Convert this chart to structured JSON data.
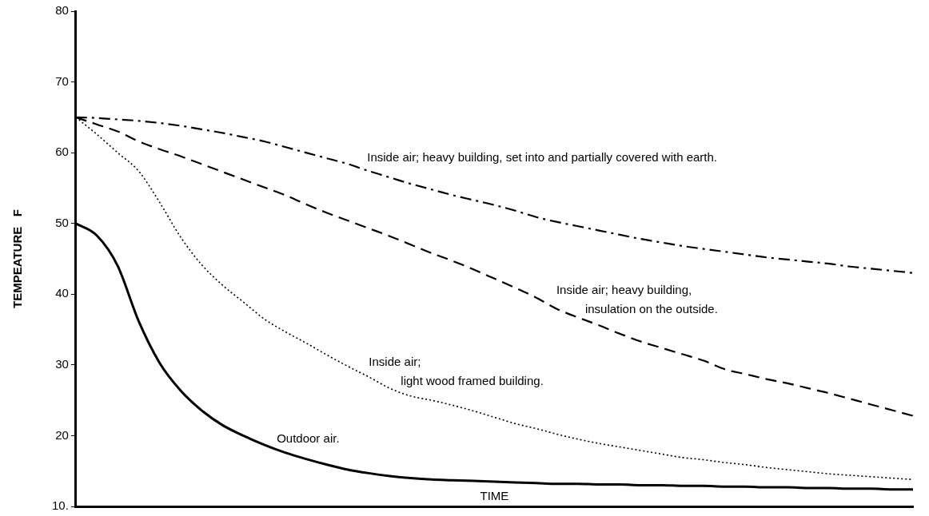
{
  "chart_data": {
    "type": "line",
    "xlabel": "TIME",
    "ylabel": "TEMPEATURE   F",
    "categories": [
      null,
      null,
      null,
      null,
      null,
      null,
      null,
      null,
      null,
      null,
      null,
      null,
      null,
      null,
      null,
      null,
      null,
      null,
      null,
      null,
      null,
      null,
      null,
      null,
      null,
      null,
      null,
      null,
      null,
      null,
      null,
      null,
      null,
      null,
      null,
      null,
      null,
      null,
      null,
      null,
      null
    ],
    "ylim": [
      10,
      80
    ],
    "yticks": [
      {
        "value": 10,
        "label": "10."
      },
      20,
      30,
      40,
      50,
      60,
      70,
      80
    ],
    "grid": false,
    "legend": false,
    "tick_labels": "y",
    "marker": "none",
    "series": [
      {
        "name": "Outdoor air.",
        "color": "#000000",
        "line_style": "solid",
        "values": [
          50,
          48.3,
          44.0,
          36.2,
          30.3,
          26.4,
          23.6,
          21.5,
          20.0,
          18.7,
          17.6,
          16.7,
          15.9,
          15.2,
          14.7,
          14.3,
          14.0,
          13.8,
          13.7,
          13.6,
          13.5,
          13.4,
          13.3,
          13.2,
          13.2,
          13.1,
          13.1,
          13.0,
          13.0,
          12.9,
          12.9,
          12.8,
          12.8,
          12.7,
          12.7,
          12.6,
          12.6,
          12.5,
          12.5,
          12.4,
          12.4
        ]
      },
      {
        "name": "Inside air;\nlight wood framed building.",
        "color": "#000000",
        "line_style": "dotted",
        "values": [
          65.0,
          62.6,
          60.0,
          57.4,
          53.0,
          48.1,
          44.2,
          41.3,
          38.9,
          36.5,
          34.7,
          33.1,
          31.4,
          29.8,
          28.3,
          26.7,
          25.6,
          25.0,
          24.3,
          23.5,
          22.6,
          21.7,
          21.0,
          20.2,
          19.5,
          18.9,
          18.4,
          17.9,
          17.4,
          16.9,
          16.6,
          16.2,
          15.9,
          15.5,
          15.2,
          14.9,
          14.6,
          14.4,
          14.2,
          14.0,
          13.8
        ]
      },
      {
        "name": "Inside air; heavy building,\ninsulation on the outside.",
        "color": "#000000",
        "line_style": "dashed",
        "values": [
          65.0,
          64.0,
          63.0,
          61.6,
          60.5,
          59.5,
          58.4,
          57.3,
          56.2,
          55.1,
          54.0,
          52.7,
          51.5,
          50.4,
          49.3,
          48.2,
          47.0,
          45.8,
          44.7,
          43.5,
          42.2,
          40.9,
          39.5,
          37.9,
          36.7,
          35.6,
          34.4,
          33.3,
          32.4,
          31.5,
          30.6,
          29.4,
          28.7,
          28.0,
          27.4,
          26.7,
          26.0,
          25.2,
          24.4,
          23.6,
          22.8
        ]
      },
      {
        "name": "Inside air; heavy building, set into and partially covered with earth.",
        "color": "#000000",
        "line_style": "dashdot",
        "values": [
          65.0,
          64.9,
          64.7,
          64.5,
          64.2,
          63.8,
          63.3,
          62.8,
          62.2,
          61.6,
          60.8,
          60.0,
          59.2,
          58.4,
          57.4,
          56.5,
          55.6,
          54.8,
          54.0,
          53.3,
          52.6,
          51.8,
          50.9,
          50.2,
          49.6,
          49.0,
          48.4,
          47.8,
          47.3,
          46.8,
          46.4,
          46.0,
          45.6,
          45.2,
          44.9,
          44.6,
          44.3,
          43.9,
          43.6,
          43.3,
          43.0
        ]
      }
    ]
  }
}
